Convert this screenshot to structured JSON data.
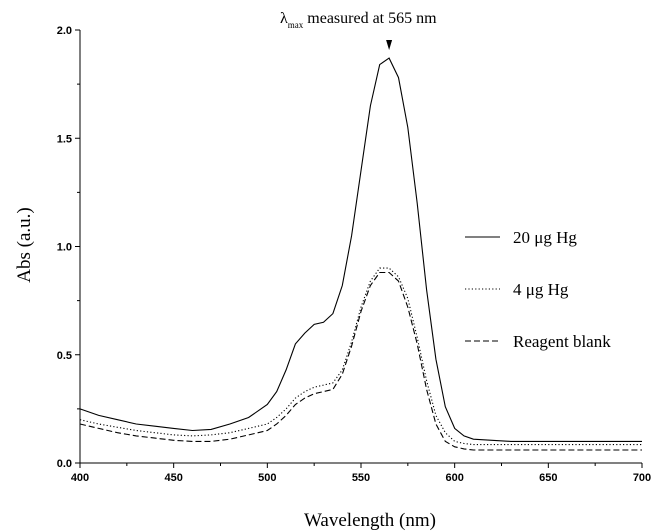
{
  "chart_data": {
    "type": "line",
    "xlabel": "Wavelength (nm)",
    "ylabel": "Abs (a.u.)",
    "xlim": [
      400,
      700
    ],
    "ylim": [
      0,
      2.0
    ],
    "xticks": [
      400,
      450,
      500,
      550,
      600,
      650,
      700
    ],
    "yticks": [
      0.0,
      0.5,
      1.0,
      1.5,
      2.0
    ],
    "xtick_labels": [
      "400",
      "450",
      "500",
      "550",
      "600",
      "650",
      "700"
    ],
    "ytick_labels": [
      "0.0",
      "0.5",
      "1.0",
      "1.5",
      "2.0"
    ],
    "grid": false,
    "legend_position": "right",
    "annotation": {
      "symbol": "λ",
      "subscript": "max",
      "text": " measured at 565 nm",
      "x": 565
    },
    "series": [
      {
        "name": "20 μg Hg",
        "style": "solid",
        "x": [
          400,
          410,
          420,
          430,
          440,
          450,
          460,
          470,
          480,
          490,
          500,
          505,
          510,
          515,
          520,
          525,
          530,
          535,
          540,
          545,
          550,
          555,
          560,
          565,
          570,
          575,
          580,
          585,
          590,
          595,
          600,
          605,
          610,
          620,
          630,
          650,
          680,
          700
        ],
        "values": [
          0.25,
          0.22,
          0.2,
          0.18,
          0.17,
          0.16,
          0.15,
          0.155,
          0.18,
          0.21,
          0.27,
          0.33,
          0.43,
          0.55,
          0.6,
          0.64,
          0.65,
          0.69,
          0.82,
          1.05,
          1.35,
          1.65,
          1.84,
          1.87,
          1.78,
          1.55,
          1.2,
          0.8,
          0.48,
          0.26,
          0.16,
          0.125,
          0.11,
          0.105,
          0.1,
          0.1,
          0.1,
          0.1
        ]
      },
      {
        "name": "4 μg Hg",
        "style": "dotted",
        "x": [
          400,
          410,
          420,
          430,
          440,
          450,
          460,
          470,
          480,
          490,
          500,
          505,
          510,
          515,
          520,
          525,
          530,
          535,
          540,
          545,
          550,
          555,
          560,
          565,
          570,
          575,
          580,
          585,
          590,
          595,
          600,
          605,
          610,
          620,
          630,
          650,
          680,
          700
        ],
        "values": [
          0.2,
          0.18,
          0.165,
          0.15,
          0.14,
          0.13,
          0.125,
          0.13,
          0.14,
          0.16,
          0.18,
          0.21,
          0.25,
          0.3,
          0.33,
          0.35,
          0.36,
          0.37,
          0.43,
          0.56,
          0.72,
          0.84,
          0.9,
          0.9,
          0.86,
          0.76,
          0.58,
          0.38,
          0.22,
          0.14,
          0.1,
          0.09,
          0.085,
          0.085,
          0.085,
          0.085,
          0.085,
          0.085
        ]
      },
      {
        "name": "Reagent blank",
        "style": "dashed",
        "x": [
          400,
          410,
          420,
          430,
          440,
          450,
          460,
          470,
          480,
          490,
          500,
          505,
          510,
          515,
          520,
          525,
          530,
          535,
          540,
          545,
          550,
          555,
          560,
          565,
          570,
          575,
          580,
          585,
          590,
          595,
          600,
          605,
          610,
          620,
          630,
          650,
          680,
          700
        ],
        "values": [
          0.18,
          0.16,
          0.14,
          0.125,
          0.115,
          0.105,
          0.1,
          0.1,
          0.11,
          0.13,
          0.15,
          0.18,
          0.22,
          0.27,
          0.3,
          0.32,
          0.33,
          0.34,
          0.41,
          0.54,
          0.7,
          0.82,
          0.88,
          0.88,
          0.84,
          0.72,
          0.55,
          0.34,
          0.18,
          0.1,
          0.075,
          0.065,
          0.06,
          0.06,
          0.06,
          0.06,
          0.06,
          0.06
        ]
      }
    ]
  }
}
